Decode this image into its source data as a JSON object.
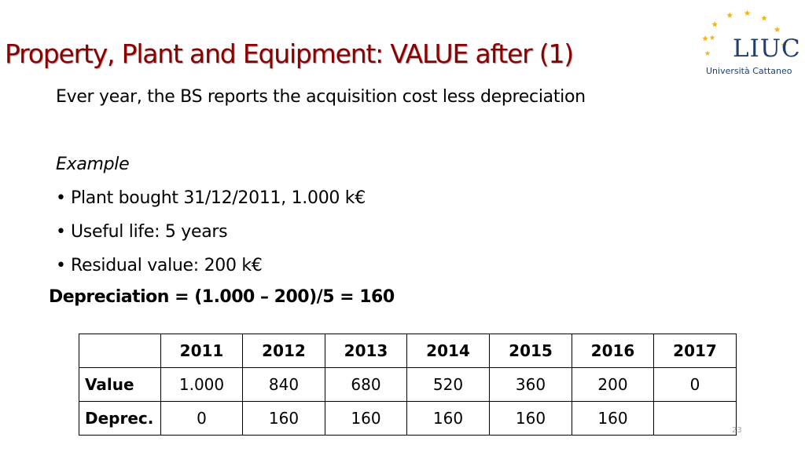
{
  "slide": {
    "title": "Property, Plant and Equipment: VALUE after (1)",
    "intro": "Ever year, the BS reports the acquisition cost less depreciation",
    "example_label": "Example",
    "bullets": [
      "Plant bought 31/12/2011, 1.000 k€",
      "Useful life: 5 years",
      "Residual value: 200 k€"
    ],
    "formula": "Depreciation =  (1.000 – 200)/5 = 160",
    "page_number": "23"
  },
  "logo": {
    "name": "LIUC",
    "subtitle": "Università Cattaneo",
    "star_color": "#f2b51c",
    "text_color": "#1f3e73"
  },
  "colors": {
    "title": "#8b0000"
  },
  "table": {
    "headers": [
      "",
      "2011",
      "2012",
      "2013",
      "2014",
      "2015",
      "2016",
      "2017"
    ],
    "rows": [
      {
        "label": "Value",
        "cells": [
          "1.000",
          "840",
          "680",
          "520",
          "360",
          "200",
          "0"
        ]
      },
      {
        "label": "Deprec.",
        "cells": [
          "0",
          "160",
          "160",
          "160",
          "160",
          "160",
          ""
        ]
      }
    ]
  }
}
